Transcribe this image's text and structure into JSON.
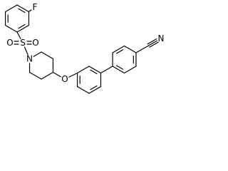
{
  "atom_labels": [
    "F",
    "O",
    "S",
    "O",
    "N",
    "O",
    "N"
  ]
}
